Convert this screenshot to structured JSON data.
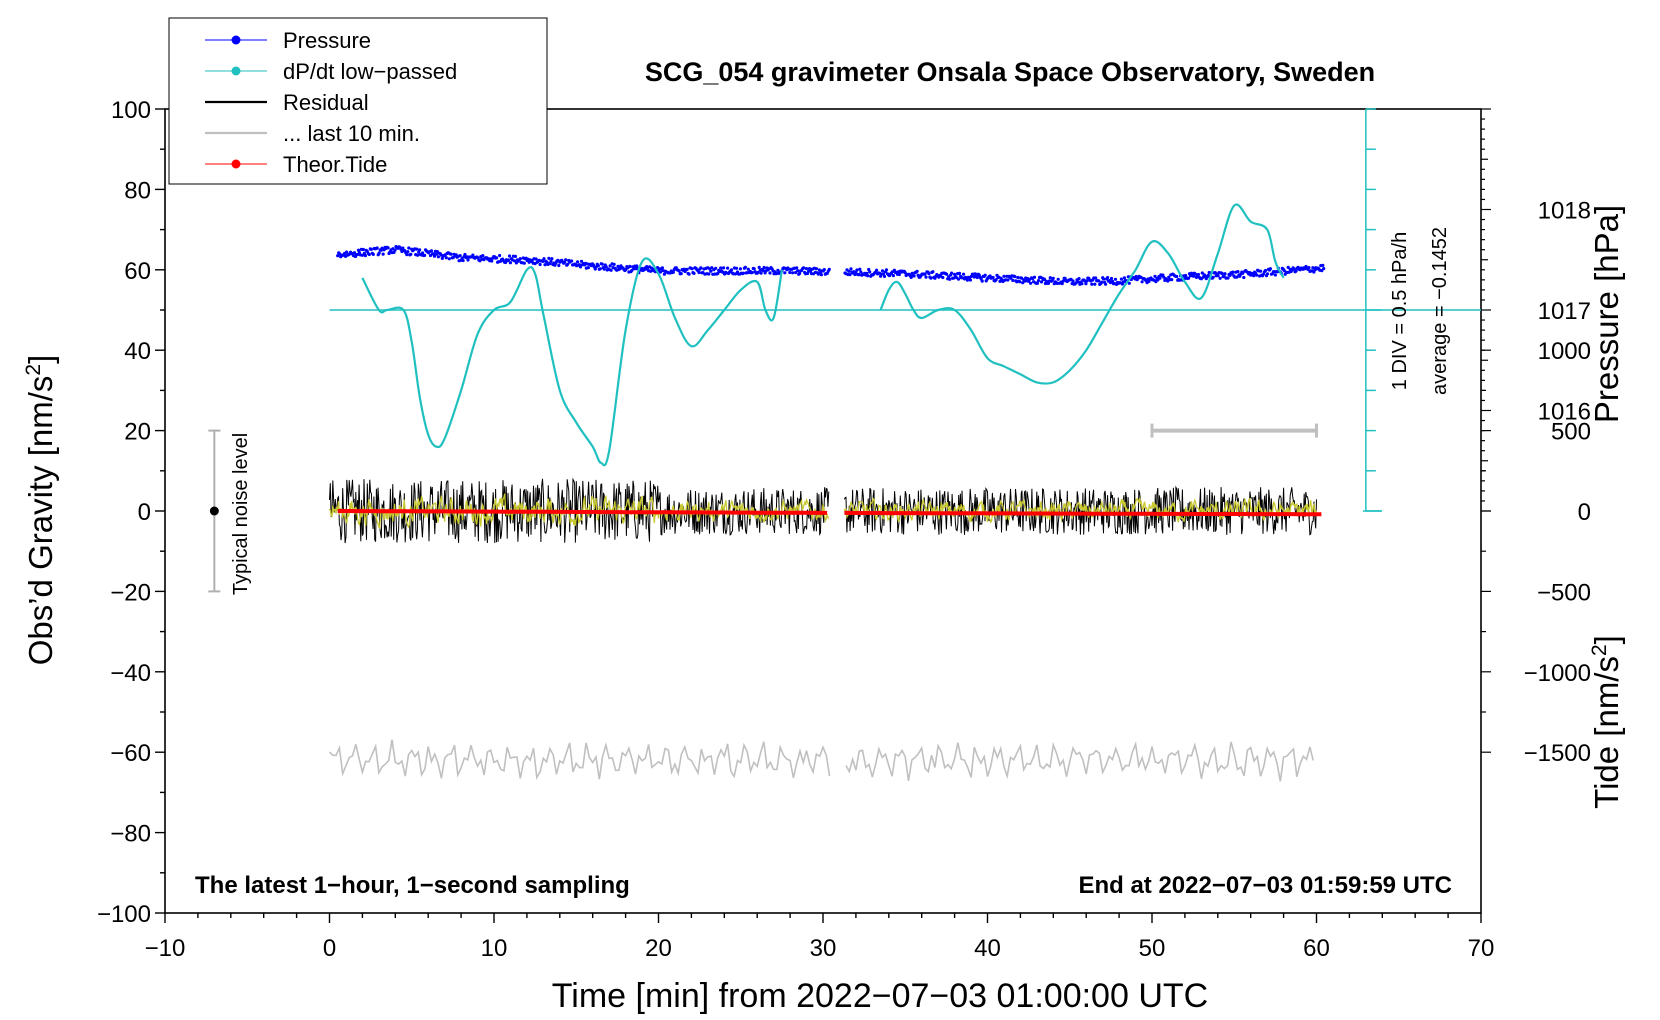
{
  "chart_data": {
    "type": "line",
    "title": "SCG_054 gravimeter Onsala Space Observatory, Sweden",
    "xlabel": "Time [min] from 2022−07−03 01:00:00 UTC",
    "ylabel_main": "Obs’d Gravity [nm/s",
    "ylabel_main_sup": "2",
    "ylabel_main_end": "]",
    "ylabel_pressure": "Pressure [hPa]",
    "ylabel_tide": "Tide [nm/s",
    "ylabel_tide_sup": "2",
    "ylabel_tide_end": "]",
    "xlim": [
      -10,
      70
    ],
    "ylim": [
      -100,
      100
    ],
    "x_ticks": [
      -10,
      0,
      10,
      20,
      30,
      40,
      50,
      60,
      70
    ],
    "x_tick_labels": [
      "−10",
      "0",
      "10",
      "20",
      "30",
      "40",
      "50",
      "60",
      "70"
    ],
    "y_ticks": [
      -100,
      -80,
      -60,
      -40,
      -20,
      0,
      20,
      40,
      60,
      80,
      100
    ],
    "y_tick_labels": [
      "−100",
      "−80",
      "−60",
      "−40",
      "−20",
      "0",
      "20",
      "40",
      "60",
      "80",
      "100"
    ],
    "pressure_axis": {
      "range": [
        1015,
        1019
      ],
      "ticks": [
        1016,
        1017,
        1018
      ],
      "tick_labels": [
        "1016",
        "1017",
        "1018"
      ]
    },
    "tide_axis": {
      "range": [
        -1500,
        1500
      ],
      "ticks": [
        -1500,
        -1000,
        -500,
        0,
        500,
        1000
      ],
      "tick_labels": [
        "−1500",
        "−1000",
        "−500",
        "0",
        "500",
        "1000"
      ]
    },
    "legend": {
      "placement": "top-left",
      "entries": [
        {
          "label": "Pressure",
          "color": "#0000ff",
          "marker": "dot"
        },
        {
          "label": "dP/dt low−passed",
          "color": "#20c0c0",
          "marker": "dot"
        },
        {
          "label": "Residual",
          "color": "#000000",
          "marker": "none"
        },
        {
          "label": "... last 10 min.",
          "color": "#c0c0c0",
          "marker": "none"
        },
        {
          "label": "Theor.Tide",
          "color": "#ff0000",
          "marker": "dot"
        }
      ]
    },
    "noise_bar": {
      "label": "Typical noise level",
      "x": -7,
      "center": 0,
      "range": [
        -20,
        20
      ]
    },
    "dpdt_scale": {
      "div_label": "1 DIV = 0.5 hPa/h",
      "average_label": "average = −0.1452",
      "x": 63,
      "gravity_range": [
        0,
        100
      ],
      "baseline": 50
    },
    "last10_marker": {
      "x_start": 50,
      "x_end": 60,
      "tide_value": 500
    },
    "footer_left": "The latest 1−hour, 1−second sampling",
    "footer_right": "End at 2022−07−03 01:59:59 UTC",
    "gap": [
      30.4,
      31.3
    ],
    "series": [
      {
        "name": "Pressure",
        "units": "hPa",
        "x": [
          0.5,
          4,
          8,
          12,
          16,
          20,
          24,
          28,
          30.3,
          31.3,
          35,
          40,
          45,
          48,
          52,
          56,
          60.5
        ],
        "y": [
          1017.55,
          1017.6,
          1017.52,
          1017.5,
          1017.44,
          1017.39,
          1017.39,
          1017.39,
          1017.38,
          1017.38,
          1017.36,
          1017.32,
          1017.28,
          1017.29,
          1017.33,
          1017.36,
          1017.42
        ]
      },
      {
        "name": "dP/dt low-passed",
        "units": "nm/s2 display scale",
        "segments": [
          {
            "x": [
              2,
              3,
              3.5,
              4.5,
              5,
              5.5,
              6,
              6.5,
              7,
              8,
              9,
              10,
              11,
              12,
              12.5,
              13,
              14,
              15,
              16,
              16.5,
              17,
              18,
              19,
              20,
              21,
              22,
              23,
              24,
              25,
              26,
              26.5,
              27,
              27.5
            ],
            "y": [
              58,
              50,
              50,
              50,
              42,
              28,
              19,
              16,
              18,
              30,
              44,
              50,
              52,
              60,
              59,
              49,
              30,
              22,
              16,
              12,
              15,
              45,
              62,
              59,
              48,
              41,
              45,
              50,
              55,
              57,
              50,
              48,
              60
            ]
          },
          {
            "x": [
              33.5,
              34,
              34.5,
              35,
              35.5,
              36,
              37,
              38,
              39,
              40,
              41,
              42,
              43,
              44,
              45,
              46,
              47,
              48,
              49,
              50,
              51,
              52,
              53,
              54,
              55,
              56,
              57,
              57.5,
              58
            ],
            "y": [
              50,
              55,
              57,
              54,
              50,
              48,
              50,
              50,
              45,
              38,
              36,
              34,
              32,
              32,
              35,
              40,
              47,
              54,
              60,
              67,
              64,
              57,
              53,
              64,
              76,
              72,
              70,
              62,
              58
            ]
          }
        ]
      },
      {
        "name": "Residual",
        "units": "nm/s2",
        "x_range": [
          0,
          60
        ],
        "approx_amplitude": 7,
        "center": 0
      },
      {
        "name": "Residual low-passed",
        "units": "nm/s2",
        "color": "#c8c830",
        "x_range": [
          0,
          60
        ],
        "approx_amplitude": 3,
        "center": 0
      },
      {
        "name": "... last 10 min.",
        "units": "nm/s2 display",
        "x_range": [
          0,
          60
        ],
        "center": -62,
        "approx_amplitude": 4
      },
      {
        "name": "Theor.Tide",
        "units": "nm/s2",
        "x": [
          0.5,
          15,
          30.4,
          31.3,
          51,
          60.5
        ],
        "y": [
          0,
          -6,
          -12,
          -12,
          -18,
          -20
        ]
      }
    ]
  },
  "colors": {
    "pressure": "#0000ff",
    "dpdt": "#20c0c0",
    "residual": "#000000",
    "residual_lp": "#c8c830",
    "last10": "#c0c0c0",
    "tide": "#ff0000"
  }
}
